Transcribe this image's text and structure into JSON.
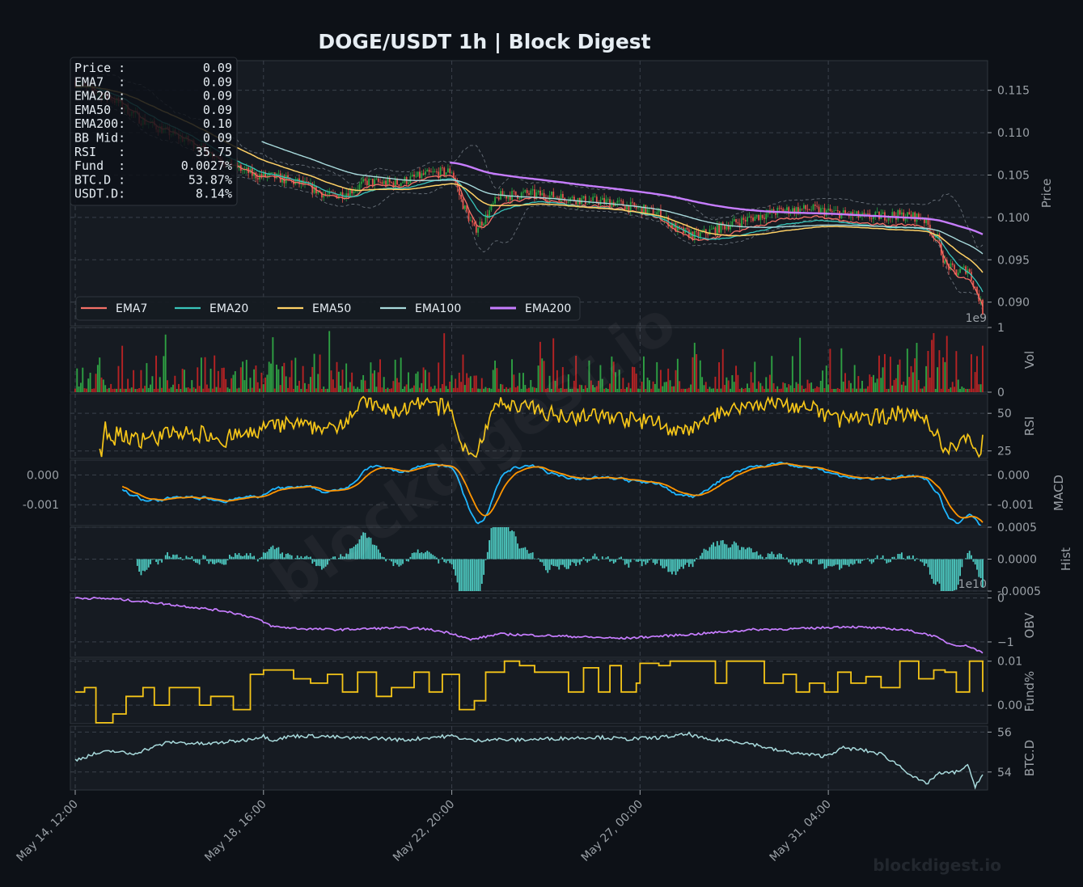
{
  "title": "DOGE/USDT  1h  |  Block Digest",
  "colors": {
    "background": "#0d1117",
    "panel": "#161b22",
    "up": "#26a641",
    "down": "#e5534b",
    "vol_up": "#2ea043",
    "vol_down": "#b62324",
    "ema7": "#f47067",
    "ema20": "#39c5bb",
    "ema50": "#ffd166",
    "ema100": "#a8dadc",
    "ema200": "#c77dff",
    "rsi": "#f5c518",
    "macd": "#1fb6ff",
    "signal": "#ff9500",
    "hist": "#4ecdc4",
    "obv": "#c77dff",
    "funding": "#f5c518",
    "btcd": "#a8dadc"
  },
  "info_box": [
    {
      "label": "Price :",
      "value": "0.09"
    },
    {
      "label": "EMA7  :",
      "value": "0.09"
    },
    {
      "label": "EMA20 :",
      "value": "0.09"
    },
    {
      "label": "EMA50 :",
      "value": "0.09"
    },
    {
      "label": "EMA200:",
      "value": "0.10"
    },
    {
      "label": "BB Mid:",
      "value": "0.09"
    },
    {
      "label": "RSI   :",
      "value": "35.75"
    },
    {
      "label": "Fund  :",
      "value": "0.0027%"
    },
    {
      "label": "BTC.D :",
      "value": "53.87%"
    },
    {
      "label": "USDT.D:",
      "value": "8.14%"
    }
  ],
  "legend": [
    "EMA7",
    "EMA20",
    "EMA50",
    "EMA100",
    "EMA200"
  ],
  "watermark_text": "blockdigest.io",
  "chart_data": {
    "type": "line",
    "x_ticks": [
      "May 14, 12:00",
      "May 18, 16:00",
      "May 22, 20:00",
      "May 27, 00:00",
      "May 31, 04:00"
    ],
    "x_range": [
      0,
      482
    ],
    "x_tick_positions": [
      0,
      100,
      200,
      300,
      400
    ],
    "panels": [
      {
        "key": "price",
        "ylabel": "Price",
        "ylim": [
          0.0872,
          0.1185
        ],
        "yticks": [
          "0.090",
          "0.095",
          "0.100",
          "0.105",
          "0.110",
          "0.115"
        ],
        "ytick_values": [
          0.09,
          0.095,
          0.1,
          0.105,
          0.11,
          0.115
        ],
        "offset_text": "1e9",
        "close_anchors": [
          [
            0,
            0.116
          ],
          [
            8,
            0.115
          ],
          [
            20,
            0.114
          ],
          [
            35,
            0.1115
          ],
          [
            50,
            0.11
          ],
          [
            65,
            0.1085
          ],
          [
            80,
            0.1065
          ],
          [
            95,
            0.105
          ],
          [
            105,
            0.1048
          ],
          [
            120,
            0.104
          ],
          [
            135,
            0.1025
          ],
          [
            145,
            0.103
          ],
          [
            155,
            0.1042
          ],
          [
            170,
            0.104
          ],
          [
            185,
            0.105
          ],
          [
            200,
            0.1055
          ],
          [
            205,
            0.102
          ],
          [
            212,
            0.0985
          ],
          [
            218,
            0.1
          ],
          [
            225,
            0.1025
          ],
          [
            240,
            0.1028
          ],
          [
            255,
            0.1025
          ],
          [
            270,
            0.102
          ],
          [
            285,
            0.1018
          ],
          [
            300,
            0.101
          ],
          [
            310,
            0.1005
          ],
          [
            320,
            0.0985
          ],
          [
            330,
            0.0978
          ],
          [
            345,
            0.099
          ],
          [
            360,
            0.1
          ],
          [
            375,
            0.1008
          ],
          [
            390,
            0.101
          ],
          [
            405,
            0.1005
          ],
          [
            420,
            0.1
          ],
          [
            435,
            0.1003
          ],
          [
            450,
            0.1
          ],
          [
            458,
            0.0975
          ],
          [
            462,
            0.0945
          ],
          [
            468,
            0.0935
          ],
          [
            474,
            0.094
          ],
          [
            480,
            0.0905
          ],
          [
            482,
            0.089
          ]
        ],
        "ema7_last": 0.0895,
        "ema20_last": 0.0912,
        "ema50_last": 0.0935,
        "ema100_last": 0.0957,
        "ema200_last": 0.098,
        "ema200_start_index": 199,
        "ema100_start_index": 99
      },
      {
        "key": "volume",
        "ylabel": "Vol",
        "ylim": [
          0,
          1.0
        ],
        "yticks": [
          "0",
          "1"
        ],
        "ytick_values": [
          0,
          1
        ],
        "unit_note": "1e9"
      },
      {
        "key": "rsi",
        "ylabel": "RSI",
        "ylim": [
          20,
          63
        ],
        "yticks": [
          "25",
          "50"
        ],
        "ytick_values": [
          25,
          50
        ],
        "start_index": 13,
        "last": 35.75
      },
      {
        "key": "macd",
        "ylabel": "MACD",
        "ylim": [
          -0.0017,
          0.0005
        ],
        "yticks": [
          "-0.001",
          "0.000"
        ],
        "ytick_values": [
          -0.001,
          0.0
        ],
        "start_index": 25,
        "series": [
          {
            "name": "MACD"
          },
          {
            "name": "Signal"
          }
        ]
      },
      {
        "key": "hist",
        "ylabel": "Hist",
        "ylim": [
          -0.0005,
          0.0005
        ],
        "yticks": [
          "-0.0005",
          "0.0000",
          "0.0005"
        ],
        "ytick_values": [
          -0.0005,
          0.0,
          0.0005
        ],
        "start_index": 33,
        "offset_text": "1e10"
      },
      {
        "key": "obv",
        "ylabel": "OBV",
        "ylim": [
          -1.35,
          0.1
        ],
        "yticks": [
          "−1",
          "0"
        ],
        "ytick_values": [
          -1,
          0
        ],
        "anchors": [
          [
            0,
            0.0
          ],
          [
            20,
            -0.02
          ],
          [
            40,
            -0.1
          ],
          [
            60,
            -0.2
          ],
          [
            80,
            -0.3
          ],
          [
            95,
            -0.45
          ],
          [
            105,
            -0.65
          ],
          [
            120,
            -0.7
          ],
          [
            140,
            -0.72
          ],
          [
            170,
            -0.68
          ],
          [
            185,
            -0.7
          ],
          [
            200,
            -0.8
          ],
          [
            210,
            -0.95
          ],
          [
            225,
            -0.82
          ],
          [
            260,
            -0.87
          ],
          [
            290,
            -0.92
          ],
          [
            330,
            -0.82
          ],
          [
            360,
            -0.72
          ],
          [
            385,
            -0.7
          ],
          [
            410,
            -0.65
          ],
          [
            440,
            -0.72
          ],
          [
            455,
            -0.85
          ],
          [
            465,
            -1.05
          ],
          [
            475,
            -1.1
          ],
          [
            482,
            -1.25
          ]
        ]
      },
      {
        "key": "funding",
        "ylabel": "Fund%",
        "ylim": [
          -0.0042,
          0.0105
        ],
        "yticks": [
          "0.00",
          "0.01"
        ],
        "ytick_values": [
          0.0,
          0.01
        ],
        "steps": [
          [
            0,
            0.003
          ],
          [
            5,
            0.004
          ],
          [
            11,
            -0.004
          ],
          [
            20,
            -0.002
          ],
          [
            27,
            0.002
          ],
          [
            36,
            0.004
          ],
          [
            42,
            0.0
          ],
          [
            50,
            0.004
          ],
          [
            58,
            0.004
          ],
          [
            66,
            0.0
          ],
          [
            72,
            0.002
          ],
          [
            84,
            -0.001
          ],
          [
            92,
            -0.001
          ],
          [
            93,
            0.007
          ],
          [
            100,
            0.008
          ],
          [
            110,
            0.008
          ],
          [
            116,
            0.006
          ],
          [
            125,
            0.005
          ],
          [
            134,
            0.007
          ],
          [
            142,
            0.003
          ],
          [
            150,
            0.0075
          ],
          [
            160,
            0.002
          ],
          [
            168,
            0.004
          ],
          [
            180,
            0.0075
          ],
          [
            188,
            0.003
          ],
          [
            195,
            0.007
          ],
          [
            204,
            -0.001
          ],
          [
            212,
            0.001
          ],
          [
            218,
            0.0075
          ],
          [
            228,
            0.01
          ],
          [
            236,
            0.009
          ],
          [
            244,
            0.0075
          ],
          [
            254,
            0.0075
          ],
          [
            262,
            0.003
          ],
          [
            270,
            0.0085
          ],
          [
            278,
            0.003
          ],
          [
            284,
            0.009
          ],
          [
            290,
            0.003
          ],
          [
            298,
            0.005
          ],
          [
            300,
            0.0095
          ],
          [
            310,
            0.009
          ],
          [
            316,
            0.01
          ],
          [
            330,
            0.01
          ],
          [
            340,
            0.005
          ],
          [
            346,
            0.01
          ],
          [
            360,
            0.01
          ],
          [
            366,
            0.005
          ],
          [
            376,
            0.007
          ],
          [
            383,
            0.003
          ],
          [
            390,
            0.005
          ],
          [
            398,
            0.003
          ],
          [
            405,
            0.0075
          ],
          [
            412,
            0.005
          ],
          [
            420,
            0.0065
          ],
          [
            428,
            0.004
          ],
          [
            436,
            0.004
          ],
          [
            438,
            0.01
          ],
          [
            448,
            0.006
          ],
          [
            456,
            0.008
          ],
          [
            462,
            0.0075
          ],
          [
            468,
            0.003
          ],
          [
            475,
            0.01
          ],
          [
            482,
            0.003
          ]
        ]
      },
      {
        "key": "btcd",
        "ylabel": "BTC.D",
        "ylim": [
          53.1,
          56.3
        ],
        "yticks": [
          "54",
          "56"
        ],
        "ytick_values": [
          54,
          56
        ],
        "anchors": [
          [
            0,
            54.6
          ],
          [
            10,
            54.9
          ],
          [
            20,
            55.05
          ],
          [
            30,
            54.9
          ],
          [
            40,
            55.2
          ],
          [
            50,
            55.5
          ],
          [
            60,
            55.45
          ],
          [
            70,
            55.4
          ],
          [
            80,
            55.5
          ],
          [
            90,
            55.6
          ],
          [
            100,
            55.8
          ],
          [
            105,
            55.6
          ],
          [
            115,
            55.8
          ],
          [
            130,
            55.8
          ],
          [
            145,
            55.7
          ],
          [
            160,
            55.7
          ],
          [
            175,
            55.6
          ],
          [
            190,
            55.75
          ],
          [
            200,
            55.8
          ],
          [
            212,
            55.55
          ],
          [
            220,
            55.65
          ],
          [
            232,
            55.6
          ],
          [
            248,
            55.65
          ],
          [
            262,
            55.7
          ],
          [
            278,
            55.75
          ],
          [
            292,
            55.65
          ],
          [
            306,
            55.7
          ],
          [
            318,
            55.8
          ],
          [
            326,
            55.9
          ],
          [
            336,
            55.6
          ],
          [
            346,
            55.6
          ],
          [
            360,
            55.4
          ],
          [
            372,
            55.1
          ],
          [
            386,
            54.9
          ],
          [
            398,
            54.8
          ],
          [
            408,
            55.2
          ],
          [
            418,
            55.1
          ],
          [
            428,
            54.9
          ],
          [
            438,
            54.3
          ],
          [
            446,
            53.7
          ],
          [
            452,
            53.4
          ],
          [
            458,
            53.9
          ],
          [
            468,
            54.0
          ],
          [
            474,
            54.3
          ],
          [
            478,
            53.3
          ],
          [
            482,
            53.9
          ]
        ],
        "last": 53.87
      }
    ]
  }
}
